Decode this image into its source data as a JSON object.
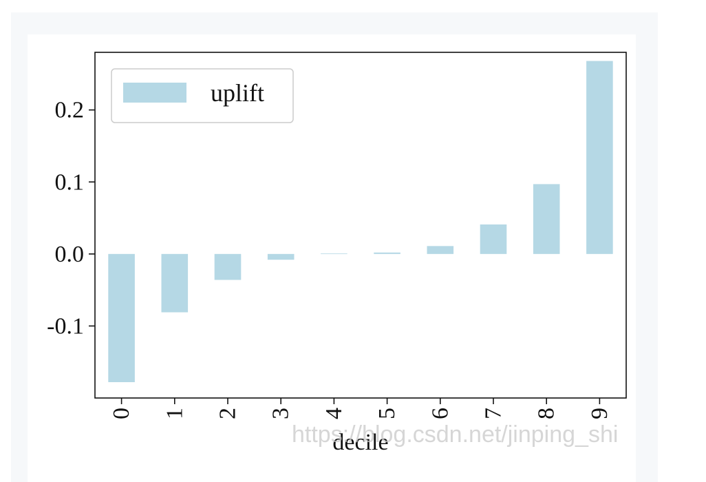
{
  "chart_data": {
    "type": "bar",
    "categories": [
      "0",
      "1",
      "2",
      "3",
      "4",
      "5",
      "6",
      "7",
      "8",
      "9"
    ],
    "series": [
      {
        "name": "uplift",
        "values": [
          -0.178,
          -0.081,
          -0.036,
          -0.008,
          0.0,
          0.002,
          0.011,
          0.041,
          0.097,
          0.268
        ]
      }
    ],
    "title": "",
    "xlabel": "decile",
    "ylabel": "",
    "ylim": [
      -0.2,
      0.28
    ],
    "yticks": [
      "-0.1",
      "0.0",
      "0.1",
      "0.2"
    ],
    "grid": false,
    "legend": "top-left",
    "bar_color": "#b5d8e5",
    "xtick_rotation": "vertical"
  },
  "watermark": "https://blog.csdn.net/jinping_shi"
}
